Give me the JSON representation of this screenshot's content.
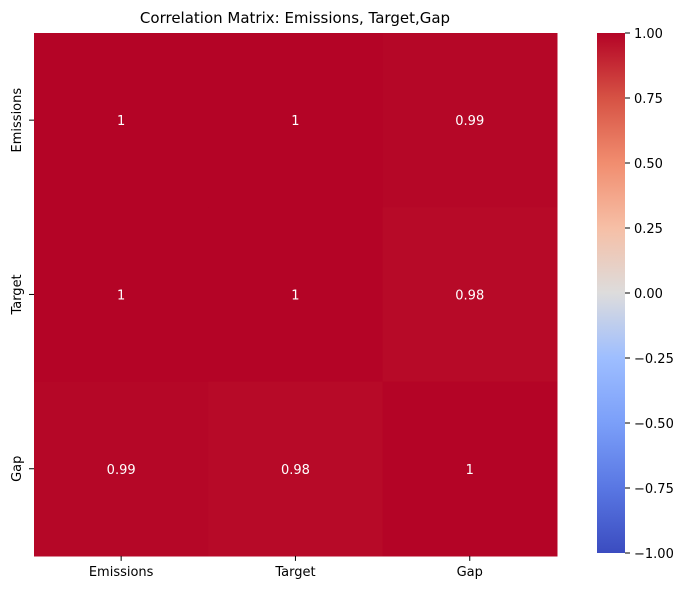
{
  "chart_data": {
    "type": "heatmap",
    "title": "Correlation Matrix: Emissions, Target,Gap",
    "x_categories": [
      "Emissions",
      "Target",
      "Gap"
    ],
    "y_categories": [
      "Emissions",
      "Target",
      "Gap"
    ],
    "values": [
      [
        1.0,
        1.0,
        0.99
      ],
      [
        1.0,
        1.0,
        0.98
      ],
      [
        0.99,
        0.98,
        1.0
      ]
    ],
    "annotations": [
      [
        "1",
        "1",
        "0.99"
      ],
      [
        "1",
        "1",
        "0.98"
      ],
      [
        "0.99",
        "0.98",
        "1"
      ]
    ],
    "colormap": "coolwarm",
    "vmin": -1.0,
    "vmax": 1.0,
    "colorbar_ticks": [
      1.0,
      0.75,
      0.5,
      0.25,
      0.0,
      -0.25,
      -0.5,
      -0.75,
      -1.0
    ],
    "colorbar_tick_labels": [
      "1.00",
      "0.75",
      "0.50",
      "0.25",
      "0.00",
      "−0.25",
      "−0.50",
      "−0.75",
      "−1.00"
    ],
    "annotation_color": "#ffffff",
    "grid": false
  }
}
